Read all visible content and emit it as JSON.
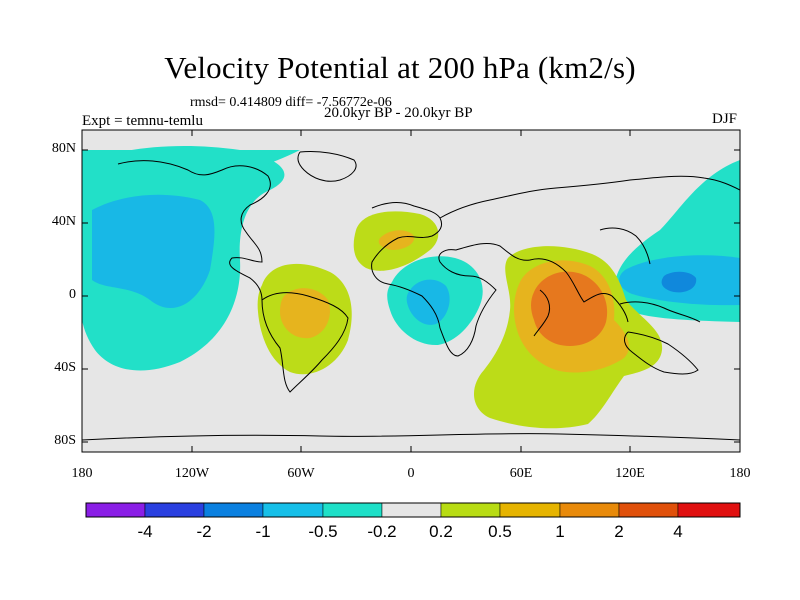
{
  "title": "Velocity Potential at 200 hPa (km2/s)",
  "stats": "rmsd= 0.414809 diff= -7.56772e-06",
  "period": "20.0kyr BP - 20.0kyr BP",
  "experiment": "Expt = temnu-temlu",
  "season": "DJF",
  "lat_labels": [
    "80N",
    "40N",
    "0",
    "40S",
    "80S"
  ],
  "lon_labels": [
    "180",
    "120W",
    "60W",
    "0",
    "60E",
    "120E",
    "180"
  ],
  "colorbar": {
    "labels": [
      "-4",
      "-2",
      "-1",
      "-0.5",
      "-0.2",
      "0.2",
      "0.5",
      "1",
      "2",
      "4"
    ],
    "colors": [
      "#8a1ee6",
      "#2a40e0",
      "#0a80e0",
      "#16bfe8",
      "#1ee0c8",
      "#e6e6e6",
      "#b8dc14",
      "#e6b400",
      "#e88a0a",
      "#e0500a",
      "#e01010"
    ]
  },
  "colors": {
    "background": "#e6e6e6",
    "neg_weak": "#22e0c8",
    "neg_mid": "#18b8e6",
    "neg_strong": "#1088dc",
    "pos_weak": "#bcdc18",
    "pos_mid": "#e6b41e",
    "pos_strong": "#e6781e"
  }
}
